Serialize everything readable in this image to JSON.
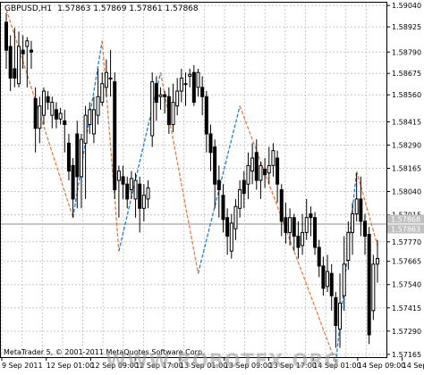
{
  "colors": {
    "background": "#ffffff",
    "grid": "#c8c8c8",
    "axis": "#000000",
    "candle": "#000000",
    "zigzag_up": "#1e7fd6",
    "zigzag_down": "#f07a3c",
    "bid_line": "#c0c0c0",
    "price_badge": "#c0c0c0"
  },
  "header": {
    "symbol_timeframe": "GBPUSD,H1",
    "ohlc": "1.57863 1.57869 1.57861 1.57868"
  },
  "footer": {
    "copyright": "MetaTrader 5, © 2001-2011 MetaQuotes Software Corp."
  },
  "watermark": "WWW.ROBOTFX.ORG",
  "chart_data": {
    "type": "candlestick",
    "timeframe": "H1",
    "symbol": "GBPUSD",
    "ylim": [
      1.5715,
      1.5906
    ],
    "grid": true,
    "y_ticks": [
      "1.59040",
      "1.58925",
      "1.58790",
      "1.58675",
      "1.58560",
      "1.58415",
      "1.58290",
      "1.58165",
      "1.58040",
      "1.57915",
      "1.57770",
      "1.57665",
      "1.57540",
      "1.57415",
      "1.57290",
      "1.57165"
    ],
    "x_ticks": [
      "9 Sep 2011",
      "12 Sep 01:00",
      "12 Sep 09:00",
      "12 Sep 17:00",
      "13 Sep 01:00",
      "13 Sep 09:00",
      "13 Sep 17:00",
      "14 Sep 01:00",
      "14 Sep 09:00",
      "14 Sep 17:00"
    ],
    "price_labels": [
      "1.57868",
      "1.57863"
    ],
    "candles": [
      [
        1.5895,
        1.588,
        1.59,
        1.587
      ],
      [
        1.5882,
        1.5865,
        1.5888,
        1.5858
      ],
      [
        1.587,
        1.5865,
        1.5892,
        1.586
      ],
      [
        1.5862,
        1.5882,
        1.589,
        1.586
      ],
      [
        1.588,
        1.5878,
        1.5888,
        1.587
      ],
      [
        1.5882,
        1.5885,
        1.5887,
        1.586
      ],
      [
        1.588,
        1.5879,
        1.5885,
        1.587
      ],
      [
        1.5854,
        1.5838,
        1.586,
        1.5825
      ],
      [
        1.5838,
        1.585,
        1.5855,
        1.583
      ],
      [
        1.5845,
        1.5858,
        1.586,
        1.584
      ],
      [
        1.5855,
        1.5852,
        1.5858,
        1.5848
      ],
      [
        1.5845,
        1.5852,
        1.5855,
        1.5838
      ],
      [
        1.5848,
        1.5843,
        1.5852,
        1.5838
      ],
      [
        1.5843,
        1.5846,
        1.5849,
        1.584
      ],
      [
        1.5842,
        1.584,
        1.5848,
        1.5825
      ],
      [
        1.583,
        1.5815,
        1.5835,
        1.581
      ],
      [
        1.5818,
        1.58,
        1.5822,
        1.579
      ],
      [
        1.5835,
        1.5812,
        1.5842,
        1.5795
      ],
      [
        1.5812,
        1.5832,
        1.5835,
        1.5795
      ],
      [
        1.583,
        1.5845,
        1.585,
        1.58
      ],
      [
        1.584,
        1.5848,
        1.5852,
        1.5835
      ],
      [
        1.5835,
        1.5848,
        1.5855,
        1.583
      ],
      [
        1.5845,
        1.5855,
        1.587,
        1.584
      ],
      [
        1.5852,
        1.5862,
        1.5868,
        1.585
      ],
      [
        1.586,
        1.5868,
        1.5875,
        1.5855
      ],
      [
        1.5865,
        1.5865,
        1.588,
        1.5855
      ],
      [
        1.5863,
        1.5805,
        1.5868,
        1.58
      ],
      [
        1.581,
        1.5815,
        1.5818,
        1.579
      ],
      [
        1.5812,
        1.5808,
        1.5818,
        1.58
      ],
      [
        1.5808,
        1.58,
        1.5812,
        1.5795
      ],
      [
        1.5805,
        1.5811,
        1.5815,
        1.58
      ],
      [
        1.58,
        1.581,
        1.5814,
        1.579
      ],
      [
        1.5808,
        1.5795,
        1.5812,
        1.5782
      ],
      [
        1.5795,
        1.5802,
        1.5808,
        1.5788
      ],
      [
        1.58,
        1.5806,
        1.581,
        1.5795
      ],
      [
        1.5834,
        1.5863,
        1.5868,
        1.5828
      ],
      [
        1.5862,
        1.5852,
        1.5866,
        1.5842
      ],
      [
        1.5855,
        1.5856,
        1.586,
        1.5848
      ],
      [
        1.5856,
        1.5855,
        1.5858,
        1.5846
      ],
      [
        1.5855,
        1.584,
        1.586,
        1.5835
      ],
      [
        1.584,
        1.5852,
        1.5862,
        1.5836
      ],
      [
        1.585,
        1.5858,
        1.5865,
        1.5845
      ],
      [
        1.5858,
        1.5865,
        1.587,
        1.5852
      ],
      [
        1.5862,
        1.5862,
        1.5868,
        1.585
      ],
      [
        1.5866,
        1.5867,
        1.587,
        1.586
      ],
      [
        1.5868,
        1.5852,
        1.5872,
        1.585
      ],
      [
        1.586,
        1.5868,
        1.587,
        1.5855
      ],
      [
        1.586,
        1.5855,
        1.5866,
        1.5845
      ],
      [
        1.5855,
        1.5835,
        1.5858,
        1.5825
      ],
      [
        1.5835,
        1.5825,
        1.584,
        1.5815
      ],
      [
        1.5828,
        1.5808,
        1.5832,
        1.5795
      ],
      [
        1.581,
        1.5805,
        1.5818,
        1.579
      ],
      [
        1.5802,
        1.5789,
        1.5808,
        1.5782
      ],
      [
        1.579,
        1.578,
        1.5795,
        1.577
      ],
      [
        1.5772,
        1.5787,
        1.5792,
        1.5768
      ],
      [
        1.5784,
        1.5796,
        1.58,
        1.5778
      ],
      [
        1.5795,
        1.5805,
        1.581,
        1.579
      ],
      [
        1.581,
        1.5803,
        1.5815,
        1.5795
      ],
      [
        1.5808,
        1.5818,
        1.5825,
        1.58
      ],
      [
        1.5815,
        1.5822,
        1.583,
        1.5808
      ],
      [
        1.5825,
        1.581,
        1.5832,
        1.5805
      ],
      [
        1.581,
        1.5818,
        1.582,
        1.58
      ],
      [
        1.5816,
        1.5813,
        1.5822,
        1.5806
      ],
      [
        1.5814,
        1.5818,
        1.5828,
        1.5808
      ],
      [
        1.5818,
        1.5826,
        1.583,
        1.5812
      ],
      [
        1.5822,
        1.5808,
        1.5826,
        1.5798
      ],
      [
        1.5805,
        1.5788,
        1.5808,
        1.578
      ],
      [
        1.579,
        1.5782,
        1.5798,
        1.5776
      ],
      [
        1.5782,
        1.579,
        1.5795,
        1.5775
      ],
      [
        1.579,
        1.578,
        1.5792,
        1.5772
      ],
      [
        1.578,
        1.5774,
        1.5788,
        1.5768
      ],
      [
        1.5775,
        1.5782,
        1.5792,
        1.577
      ],
      [
        1.5782,
        1.579,
        1.58,
        1.5778
      ],
      [
        1.5792,
        1.579,
        1.5796,
        1.578
      ],
      [
        1.579,
        1.5774,
        1.5793,
        1.577
      ],
      [
        1.5774,
        1.5764,
        1.5778,
        1.5758
      ],
      [
        1.5764,
        1.5752,
        1.5769,
        1.5748
      ],
      [
        1.5753,
        1.5761,
        1.577,
        1.575
      ],
      [
        1.576,
        1.5748,
        1.5765,
        1.574
      ],
      [
        1.5747,
        1.5732,
        1.575,
        1.572
      ],
      [
        1.573,
        1.5744,
        1.576,
        1.572
      ],
      [
        1.5748,
        1.5765,
        1.578,
        1.574
      ],
      [
        1.5767,
        1.5782,
        1.5788,
        1.5762
      ],
      [
        1.5782,
        1.5792,
        1.5798,
        1.577
      ],
      [
        1.5792,
        1.58,
        1.5814,
        1.5788
      ],
      [
        1.58,
        1.5788,
        1.5812,
        1.578
      ],
      [
        1.5788,
        1.578,
        1.5792,
        1.577
      ],
      [
        1.5781,
        1.5727,
        1.5785,
        1.5722
      ],
      [
        1.574,
        1.5765,
        1.577,
        1.5735
      ],
      [
        1.5765,
        1.5768,
        1.5778,
        1.5755
      ]
    ],
    "zigzag": [
      [
        0,
        1.5902,
        "down"
      ],
      [
        16,
        1.579,
        "up"
      ],
      [
        23,
        1.5885,
        "down"
      ],
      [
        27,
        1.5772,
        "up"
      ],
      [
        37,
        1.5868,
        "down"
      ],
      [
        46,
        1.576,
        "up"
      ],
      [
        56,
        1.585,
        "down"
      ],
      [
        79,
        1.5712,
        "up"
      ],
      [
        84,
        1.5815,
        "down"
      ],
      [
        89,
        1.5775,
        "down"
      ]
    ]
  }
}
